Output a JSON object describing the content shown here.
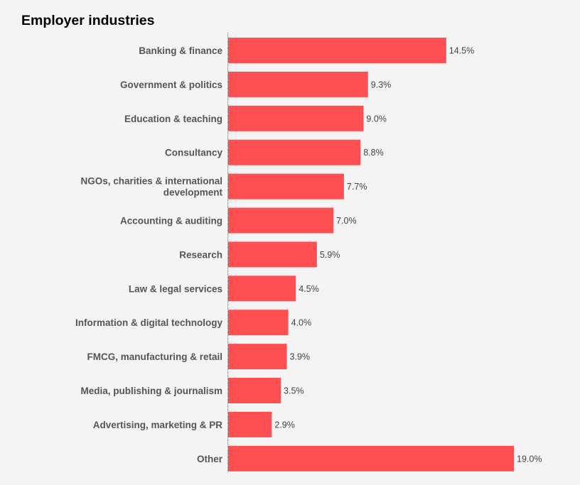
{
  "chart_data": {
    "type": "bar",
    "orientation": "horizontal",
    "title": "Employer industries",
    "xlabel": "",
    "ylabel": "",
    "grid": false,
    "bar_color": "#fe5053",
    "categories": [
      "Banking & finance",
      "Government & politics",
      "Education & teaching",
      "Consultancy",
      "NGOs, charities & international development",
      "Accounting & auditing",
      "Research",
      "Law & legal services",
      "Information & digital technology",
      "FMCG, manufacturing & retail",
      "Media, publishing & journalism",
      "Advertising, marketing & PR",
      "Other"
    ],
    "category_lines": [
      [
        "Banking & finance"
      ],
      [
        "Government & politics"
      ],
      [
        "Education & teaching"
      ],
      [
        "Consultancy"
      ],
      [
        "NGOs, charities & international",
        "development"
      ],
      [
        "Accounting & auditing"
      ],
      [
        "Research"
      ],
      [
        "Law & legal services"
      ],
      [
        "Information & digital technology"
      ],
      [
        "FMCG, manufacturing & retail"
      ],
      [
        "Media, publishing & journalism"
      ],
      [
        "Advertising, marketing & PR"
      ],
      [
        "Other"
      ]
    ],
    "values": [
      14.5,
      9.3,
      9.0,
      8.8,
      7.7,
      7.0,
      5.9,
      4.5,
      4.0,
      3.9,
      3.5,
      2.9,
      19.0
    ],
    "value_labels": [
      "14.5%",
      "9.3%",
      "9.0%",
      "8.8%",
      "7.7%",
      "7.0%",
      "5.9%",
      "4.5%",
      "4.0%",
      "3.9%",
      "3.5%",
      "2.9%",
      "19.0%"
    ],
    "unit": "%"
  }
}
